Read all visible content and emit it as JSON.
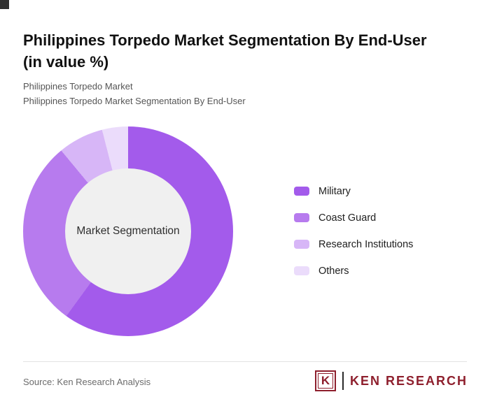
{
  "header": {
    "title": "Philippines Torpedo Market Segmentation By End-User (in value %)",
    "subtitle_line1": "Philippines Torpedo Market",
    "subtitle_line2": "Philippines Torpedo Market Segmentation By End-User"
  },
  "chart_data": {
    "type": "pie",
    "subtype": "donut",
    "title": "Philippines Torpedo Market Segmentation By End-User (in value %)",
    "center_label": "Market Segmentation",
    "categories": [
      "Military",
      "Coast Guard",
      "Research Institutions",
      "Others"
    ],
    "values": [
      60,
      29,
      7,
      4
    ],
    "colors": [
      "#A35BEB",
      "#B77BEE",
      "#D7B6F7",
      "#EBDCFB"
    ],
    "hole_color": "#F0F0F0",
    "start_angle_deg": 0,
    "direction": "clockwise",
    "legend_position": "right"
  },
  "footer": {
    "source": "Source: Ken Research Analysis",
    "logo": {
      "letter": "K",
      "text": "KEN RESEARCH"
    }
  }
}
